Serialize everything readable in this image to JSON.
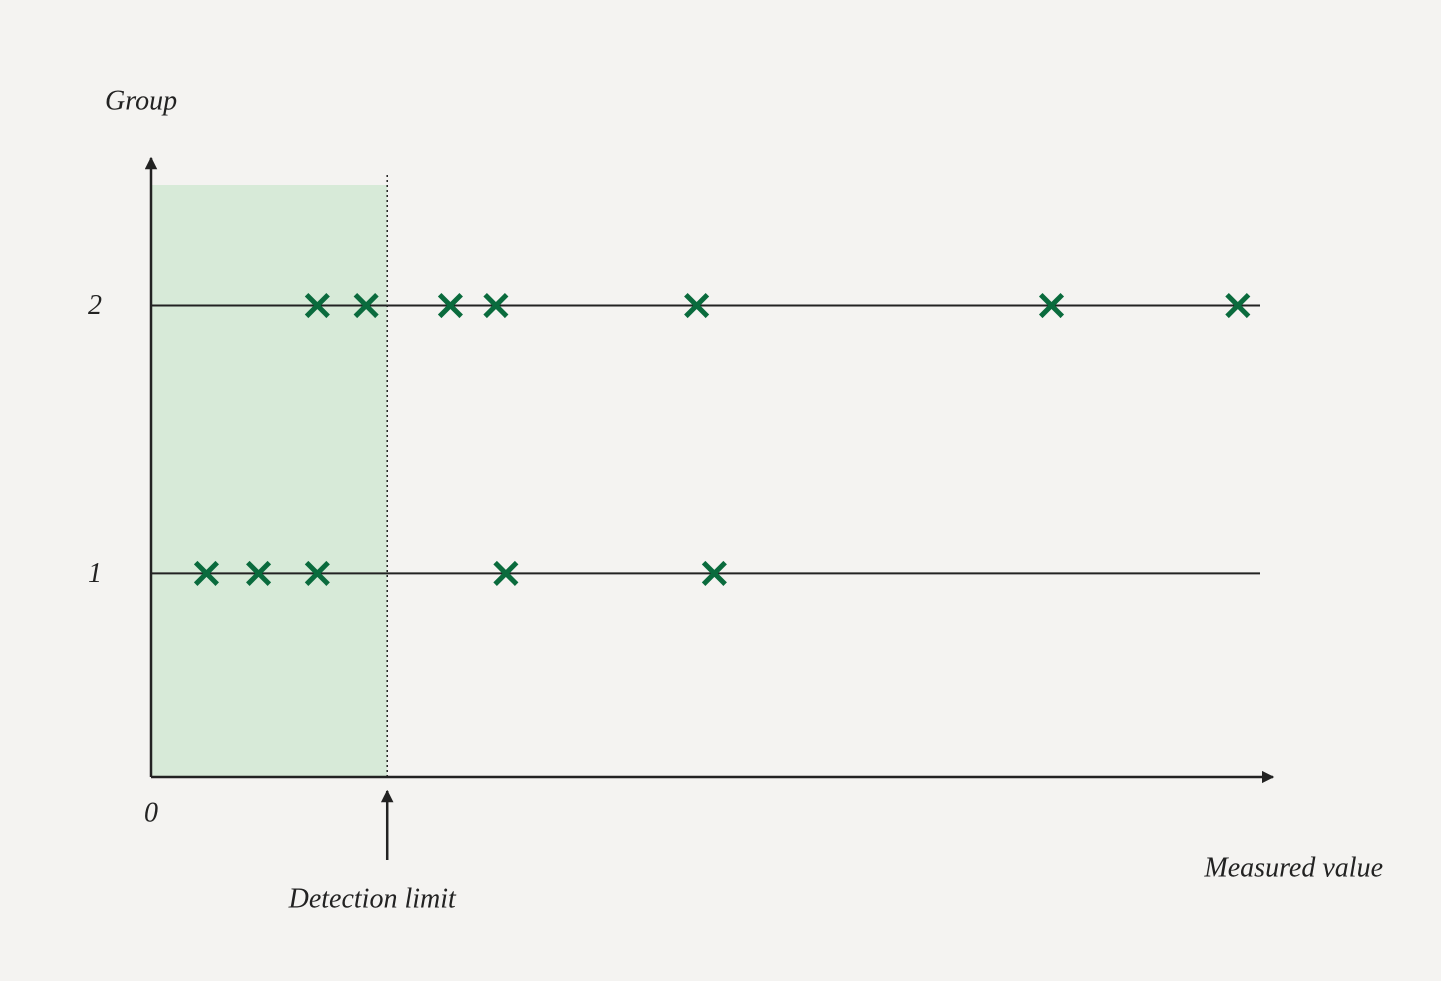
{
  "chart_data": {
    "type": "scatter",
    "xlabel": "Measured value",
    "ylabel": "Group",
    "xlim": [
      0,
      100
    ],
    "xticks": [
      0
    ],
    "ylim": [
      0.24,
      2.45
    ],
    "yticks": [
      1,
      2
    ],
    "grid": true,
    "series": [
      {
        "color": "#0a6b3d",
        "x": [
          5,
          9.7,
          15,
          32,
          50.8
        ],
        "values": [
          1,
          1,
          1,
          1,
          1
        ]
      },
      {
        "color": "#0a6b3d",
        "x": [
          15,
          19.4,
          27,
          31.1,
          49.2,
          81.2,
          98
        ],
        "values": [
          2,
          2,
          2,
          2,
          2,
          2,
          2
        ]
      }
    ],
    "detection_limit": {
      "label": "Detection limit",
      "x": 21.3,
      "shade_color": "#d7ead8"
    }
  }
}
